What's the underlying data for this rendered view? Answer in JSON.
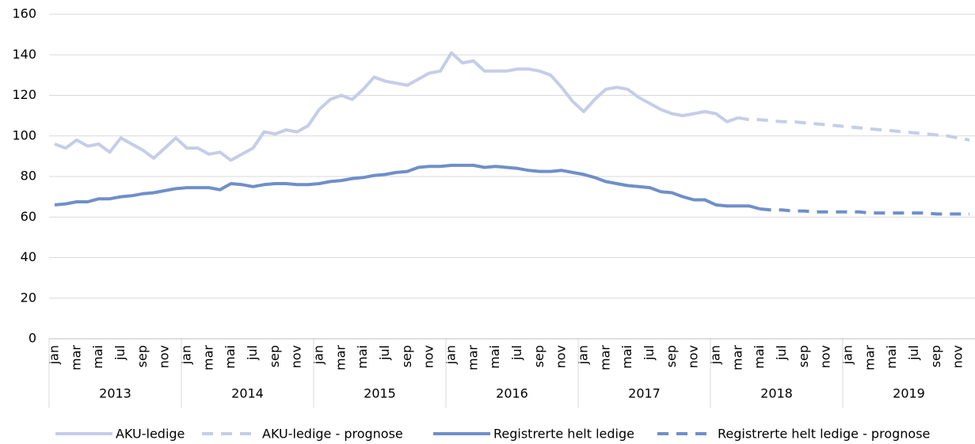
{
  "chart_data": {
    "type": "line",
    "categories": [
      "jan",
      null,
      "mar",
      null,
      "mai",
      null,
      "jul",
      null,
      "sep",
      null,
      "nov",
      null,
      "jan",
      null,
      "mar",
      null,
      "mai",
      null,
      "jul",
      null,
      "sep",
      null,
      "nov",
      null,
      "jan",
      null,
      "mar",
      null,
      "mai",
      null,
      "jul",
      null,
      "sep",
      null,
      "nov",
      null,
      "jan",
      null,
      "mar",
      null,
      "mai",
      null,
      "jul",
      null,
      "sep",
      null,
      "nov",
      null,
      "jan",
      null,
      "mar",
      null,
      "mai",
      null,
      "jul",
      null,
      "sep",
      null,
      "nov",
      null,
      "jan",
      null,
      "mar",
      null,
      "mai",
      null,
      "jul",
      null,
      "sep",
      null,
      "nov",
      null,
      "jan",
      null,
      "mar",
      null,
      "mai",
      null,
      "jul",
      null,
      "sep",
      null,
      "nov",
      null
    ],
    "years": [
      "2013",
      "2014",
      "2015",
      "2016",
      "2017",
      "2018",
      "2019"
    ],
    "series": [
      {
        "name": "AKU-ledige",
        "color": "#c5cde8",
        "dashed": false,
        "values": [
          96,
          94,
          98,
          95,
          96,
          92,
          99,
          96,
          93,
          89,
          94,
          99,
          94,
          94,
          91,
          92,
          88,
          91,
          94,
          102,
          101,
          103,
          102,
          105,
          113,
          118,
          120,
          118,
          123,
          129,
          127,
          126,
          125,
          128,
          131,
          132,
          141,
          136,
          137,
          132,
          132,
          132,
          133,
          133,
          132,
          130,
          124,
          117,
          112,
          118,
          123,
          124,
          123,
          119,
          116,
          113,
          111,
          110,
          111,
          112,
          111,
          107,
          109,
          null,
          null,
          null,
          null,
          null,
          null,
          null,
          null,
          null,
          null,
          null,
          null,
          null,
          null,
          null,
          null,
          null,
          null,
          null,
          null,
          null
        ]
      },
      {
        "name": "AKU-ledige - prognose",
        "color": "#c5cde8",
        "dashed": true,
        "values": [
          null,
          null,
          null,
          null,
          null,
          null,
          null,
          null,
          null,
          null,
          null,
          null,
          null,
          null,
          null,
          null,
          null,
          null,
          null,
          null,
          null,
          null,
          null,
          null,
          null,
          null,
          null,
          null,
          null,
          null,
          null,
          null,
          null,
          null,
          null,
          null,
          null,
          null,
          null,
          null,
          null,
          null,
          null,
          null,
          null,
          null,
          null,
          null,
          null,
          null,
          null,
          null,
          null,
          null,
          null,
          null,
          null,
          null,
          null,
          null,
          null,
          null,
          109,
          108,
          108,
          107.5,
          107,
          107,
          106.5,
          106,
          105.5,
          105,
          104.5,
          104,
          103.5,
          103,
          102.5,
          102,
          101.5,
          101,
          100.5,
          100,
          99,
          98
        ]
      },
      {
        "name": "Registrerte helt ledige",
        "color": "#6f8fc9",
        "dashed": false,
        "values": [
          66,
          66.5,
          67.5,
          67.5,
          69,
          69,
          70,
          70.5,
          71.5,
          72,
          73,
          74,
          74.5,
          74.5,
          74.5,
          73.5,
          76.5,
          76,
          75,
          76,
          76.5,
          76.5,
          76,
          76,
          76.5,
          77.5,
          78,
          79,
          79.5,
          80.5,
          81,
          82,
          82.5,
          84.5,
          85,
          85,
          85.5,
          85.5,
          85.5,
          84.5,
          85,
          84.5,
          84,
          83,
          82.5,
          82.5,
          83,
          82,
          81,
          79.5,
          77.5,
          76.5,
          75.5,
          75,
          74.5,
          72.5,
          72,
          70,
          68.5,
          68.5,
          66,
          65.5,
          65.5,
          65.5,
          64,
          null,
          null,
          null,
          null,
          null,
          null,
          null,
          null,
          null,
          null,
          null,
          null,
          null,
          null,
          null,
          null,
          null,
          null,
          null
        ]
      },
      {
        "name": "Registrerte helt ledige - prognose",
        "color": "#6f8fc9",
        "dashed": true,
        "values": [
          null,
          null,
          null,
          null,
          null,
          null,
          null,
          null,
          null,
          null,
          null,
          null,
          null,
          null,
          null,
          null,
          null,
          null,
          null,
          null,
          null,
          null,
          null,
          null,
          null,
          null,
          null,
          null,
          null,
          null,
          null,
          null,
          null,
          null,
          null,
          null,
          null,
          null,
          null,
          null,
          null,
          null,
          null,
          null,
          null,
          null,
          null,
          null,
          null,
          null,
          null,
          null,
          null,
          null,
          null,
          null,
          null,
          null,
          null,
          null,
          null,
          null,
          null,
          null,
          64,
          63.5,
          63.5,
          63,
          63,
          62.5,
          62.5,
          62.5,
          62.5,
          62.5,
          62,
          62,
          62,
          62,
          62,
          62,
          61.5,
          61.5,
          61.5,
          61.5
        ]
      }
    ],
    "ylim": [
      0,
      160
    ],
    "yticks": [
      0,
      20,
      40,
      60,
      80,
      100,
      120,
      140,
      160
    ],
    "grid": true,
    "legend": "bottom"
  }
}
